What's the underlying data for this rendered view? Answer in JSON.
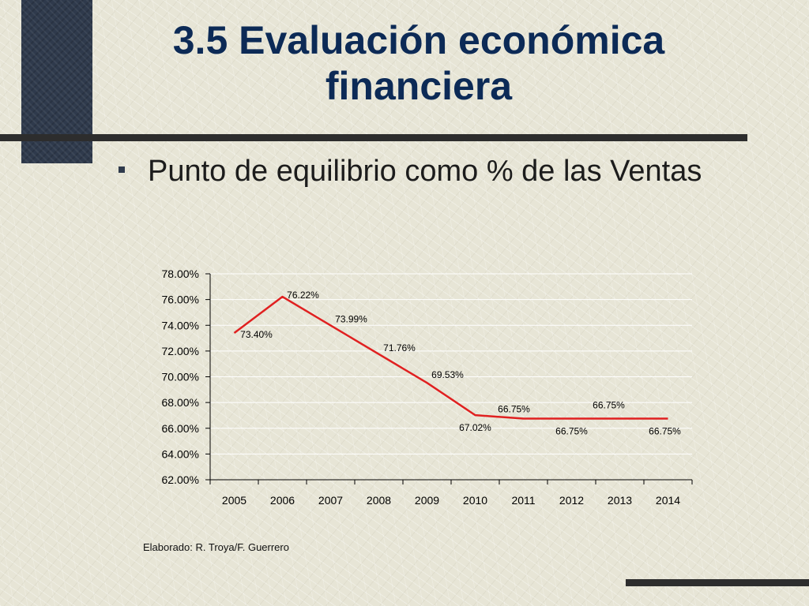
{
  "slide": {
    "title_line1": "3.5 Evaluación económica",
    "title_line2": "financiera",
    "bullet": "Punto de equilibrio como % de las Ventas",
    "credit": "Elaborado: R. Troya/F. Guerrero"
  },
  "colors": {
    "title": "#0c2a56",
    "series_line": "#e02020",
    "dark_block": "#2f3a4c"
  },
  "chart_data": {
    "type": "line",
    "categories": [
      "2005",
      "2006",
      "2007",
      "2008",
      "2009",
      "2010",
      "2011",
      "2012",
      "2013",
      "2014"
    ],
    "values": [
      73.4,
      76.22,
      73.99,
      71.76,
      69.53,
      67.02,
      66.75,
      66.75,
      66.75,
      66.75
    ],
    "data_labels": [
      "73.40%",
      "76.22%",
      "73.99%",
      "71.76%",
      "69.53%",
      "67.02%",
      "66.75%",
      "66.75%",
      "66.75%",
      "66.75%"
    ],
    "ylim": [
      62,
      78
    ],
    "y_ticks": [
      "62.00%",
      "64.00%",
      "66.00%",
      "68.00%",
      "70.00%",
      "72.00%",
      "74.00%",
      "76.00%",
      "78.00%"
    ],
    "grid": true,
    "legend": "none"
  }
}
